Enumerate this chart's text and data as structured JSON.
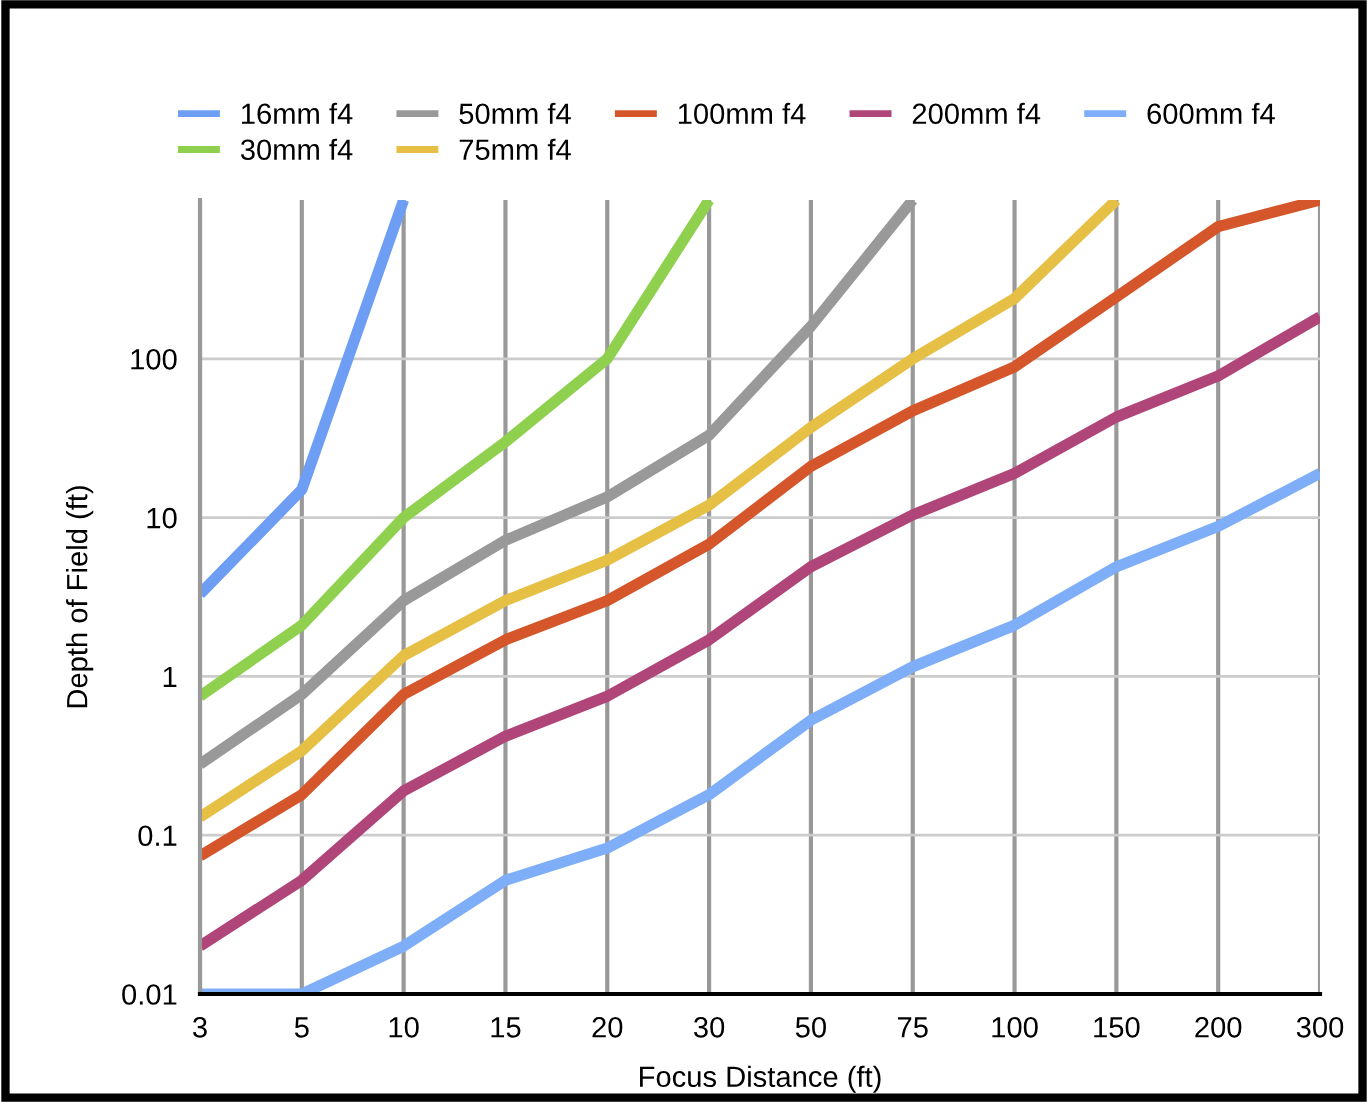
{
  "chart_data": {
    "type": "line",
    "xlabel": "Focus Distance (ft)",
    "ylabel": "Depth of Field (ft)",
    "categories": [
      "3",
      "5",
      "10",
      "15",
      "20",
      "30",
      "50",
      "75",
      "100",
      "150",
      "200",
      "300"
    ],
    "log": true,
    "ylim": [
      0.01,
      1000
    ],
    "yticks": [
      0.01,
      0.1,
      1,
      10,
      100
    ],
    "grid": true,
    "legend": "top",
    "marker": "none",
    "line_style": "solid",
    "series": [
      {
        "name": "16mm f4",
        "color": "#6d9ef3",
        "values": [
          3.3,
          15,
          1000,
          null,
          null,
          null,
          null,
          null,
          null,
          null,
          null,
          null
        ]
      },
      {
        "name": "30mm f4",
        "color": "#8fd14f",
        "values": [
          0.75,
          2.1,
          10,
          30,
          100,
          1000,
          null,
          null,
          null,
          null,
          null,
          null
        ]
      },
      {
        "name": "50mm f4",
        "color": "#999999",
        "values": [
          0.28,
          0.77,
          3,
          7.2,
          13.5,
          33,
          160,
          1000,
          null,
          null,
          null,
          null
        ]
      },
      {
        "name": "75mm f4",
        "color": "#e6bf45",
        "values": [
          0.13,
          0.34,
          1.35,
          3,
          5.4,
          12,
          37,
          100,
          240,
          1000,
          null,
          null
        ]
      },
      {
        "name": "100mm f4",
        "color": "#d4562a",
        "values": [
          0.074,
          0.18,
          0.77,
          1.7,
          3,
          6.8,
          21,
          47,
          89,
          245,
          680,
          1000
        ]
      },
      {
        "name": "200mm f4",
        "color": "#b04579",
        "values": [
          0.02,
          0.052,
          0.19,
          0.42,
          0.75,
          1.7,
          4.9,
          10.4,
          19,
          43,
          78,
          184
        ]
      },
      {
        "name": "600mm f4",
        "color": "#7eaef8",
        "values": [
          0.01,
          0.01,
          0.02,
          0.052,
          0.083,
          0.18,
          0.53,
          1.15,
          2.1,
          4.9,
          8.8,
          19
        ]
      }
    ]
  }
}
